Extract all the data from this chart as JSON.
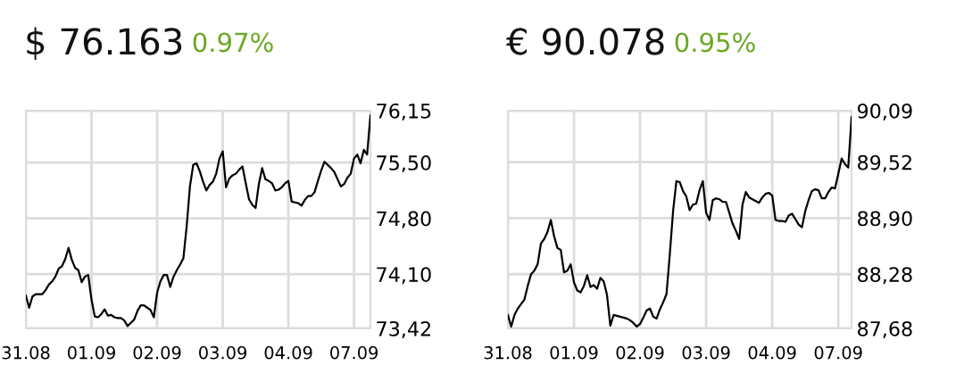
{
  "chart_data": [
    {
      "type": "line",
      "title": "$ 76.163",
      "subtitle": "0.97%",
      "grid": true,
      "legend": false,
      "marker": "none",
      "line_style": "solid",
      "categories": [
        "31.08",
        null,
        null,
        null,
        null,
        null,
        null,
        null,
        null,
        null,
        null,
        null,
        null,
        null,
        null,
        null,
        null,
        null,
        null,
        null,
        "01.09",
        null,
        null,
        null,
        null,
        null,
        null,
        null,
        null,
        null,
        null,
        null,
        null,
        null,
        null,
        null,
        null,
        null,
        null,
        null,
        "02.09",
        null,
        null,
        null,
        null,
        null,
        null,
        null,
        null,
        null,
        null,
        null,
        null,
        null,
        null,
        null,
        null,
        null,
        null,
        null,
        "03.09",
        null,
        null,
        null,
        null,
        null,
        null,
        null,
        null,
        null,
        null,
        null,
        null,
        null,
        null,
        null,
        null,
        null,
        null,
        null,
        "04.09",
        null,
        null,
        null,
        null,
        null,
        null,
        null,
        null,
        null,
        null,
        null,
        null,
        null,
        null,
        null,
        null,
        null,
        null,
        null,
        "07.09",
        null,
        null,
        null,
        null,
        null
      ],
      "ylim": [
        73.42,
        76.15
      ],
      "yticks": [
        {
          "value": 73.42,
          "label": "73,42"
        },
        {
          "value": 74.1,
          "label": "74,10"
        },
        {
          "value": 74.8,
          "label": "74,80"
        },
        {
          "value": 75.5,
          "label": "75,50"
        },
        {
          "value": 76.15,
          "label": "76,15"
        }
      ],
      "series": [
        {
          "color": "#000000",
          "values": [
            73.83,
            73.68,
            73.82,
            73.85,
            73.85,
            73.85,
            73.9,
            73.97,
            74.01,
            74.07,
            74.17,
            74.2,
            74.29,
            74.43,
            74.28,
            74.18,
            74.15,
            74.0,
            74.07,
            74.09,
            73.78,
            73.57,
            73.56,
            73.6,
            73.66,
            73.58,
            73.59,
            73.56,
            73.55,
            73.55,
            73.52,
            73.45,
            73.49,
            73.53,
            73.64,
            73.71,
            73.71,
            73.68,
            73.65,
            73.56,
            73.87,
            74.01,
            74.09,
            74.09,
            73.94,
            74.07,
            74.15,
            74.22,
            74.3,
            74.7,
            75.2,
            75.47,
            75.49,
            75.39,
            75.26,
            75.15,
            75.22,
            75.26,
            75.36,
            75.55,
            75.64,
            75.19,
            75.3,
            75.34,
            75.36,
            75.41,
            75.45,
            75.24,
            75.04,
            74.97,
            74.93,
            75.23,
            75.43,
            75.29,
            75.27,
            75.24,
            75.15,
            75.16,
            75.19,
            75.24,
            75.27,
            75.01,
            75.0,
            74.99,
            74.96,
            75.03,
            75.08,
            75.08,
            75.13,
            75.27,
            75.4,
            75.51,
            75.47,
            75.43,
            75.38,
            75.29,
            75.2,
            75.23,
            75.31,
            75.36,
            75.55,
            75.6,
            75.49,
            75.66,
            75.6,
            76.09
          ]
        }
      ]
    },
    {
      "type": "line",
      "title": "€ 90.078",
      "subtitle": "0.95%",
      "grid": true,
      "legend": false,
      "marker": "none",
      "line_style": "solid",
      "categories": [
        "31.08",
        null,
        null,
        null,
        null,
        null,
        null,
        null,
        null,
        null,
        null,
        null,
        null,
        null,
        null,
        null,
        null,
        null,
        null,
        null,
        "01.09",
        null,
        null,
        null,
        null,
        null,
        null,
        null,
        null,
        null,
        null,
        null,
        null,
        null,
        null,
        null,
        null,
        null,
        null,
        null,
        "02.09",
        null,
        null,
        null,
        null,
        null,
        null,
        null,
        null,
        null,
        null,
        null,
        null,
        null,
        null,
        null,
        null,
        null,
        null,
        null,
        "03.09",
        null,
        null,
        null,
        null,
        null,
        null,
        null,
        null,
        null,
        null,
        null,
        null,
        null,
        null,
        null,
        null,
        null,
        null,
        null,
        "04.09",
        null,
        null,
        null,
        null,
        null,
        null,
        null,
        null,
        null,
        null,
        null,
        null,
        null,
        null,
        null,
        null,
        null,
        null,
        null,
        "07.09",
        null,
        null,
        null,
        null
      ],
      "ylim": [
        87.68,
        90.09
      ],
      "yticks": [
        {
          "value": 87.68,
          "label": "87,68"
        },
        {
          "value": 88.28,
          "label": "88,28"
        },
        {
          "value": 88.9,
          "label": "88,90"
        },
        {
          "value": 89.52,
          "label": "89,52"
        },
        {
          "value": 90.09,
          "label": "90,09"
        }
      ],
      "series": [
        {
          "color": "#000000",
          "values": [
            87.83,
            87.7,
            87.83,
            87.9,
            87.95,
            88.0,
            88.15,
            88.28,
            88.32,
            88.39,
            88.62,
            88.67,
            88.75,
            88.88,
            88.7,
            88.57,
            88.55,
            88.3,
            88.32,
            88.39,
            88.19,
            88.1,
            88.08,
            88.15,
            88.27,
            88.14,
            88.16,
            88.12,
            88.24,
            88.2,
            88.05,
            87.71,
            87.83,
            87.82,
            87.81,
            87.8,
            87.79,
            87.77,
            87.74,
            87.7,
            87.73,
            87.8,
            87.88,
            87.9,
            87.81,
            87.79,
            87.89,
            87.97,
            88.06,
            88.5,
            88.98,
            89.31,
            89.3,
            89.2,
            89.14,
            88.99,
            89.05,
            89.06,
            89.21,
            89.31,
            88.96,
            88.88,
            89.1,
            89.12,
            89.11,
            89.08,
            89.08,
            88.96,
            88.84,
            88.76,
            88.67,
            89.05,
            89.19,
            89.13,
            89.11,
            89.09,
            89.07,
            89.13,
            89.17,
            89.18,
            89.15,
            88.88,
            88.87,
            88.87,
            88.86,
            88.93,
            88.95,
            88.89,
            88.83,
            88.8,
            88.98,
            89.1,
            89.2,
            89.22,
            89.21,
            89.12,
            89.12,
            89.19,
            89.24,
            89.23,
            89.39,
            89.56,
            89.5,
            89.46,
            90.02
          ]
        }
      ]
    }
  ]
}
